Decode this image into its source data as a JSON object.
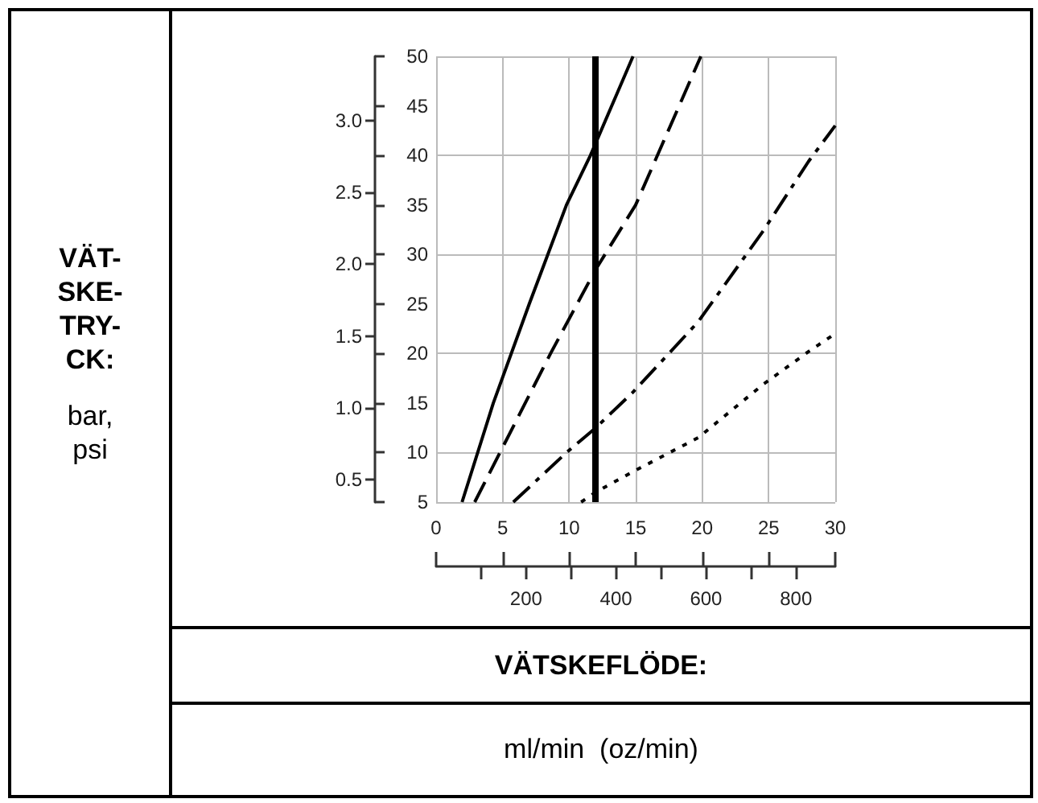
{
  "chart_data": {
    "type": "line",
    "xlabel": "VÄTSKEFLÖDE:",
    "x2label": "ml/min (oz/min)",
    "annotations": [
      "VÄT-SKE-TRY-CK:",
      "bar, psi"
    ],
    "xlim": [
      0,
      30
    ],
    "xticks": [
      0,
      5,
      10,
      15,
      20,
      25,
      30
    ],
    "x2lim": [
      0,
      887.2
    ],
    "x2ticks": [
      {
        "value": 100,
        "label": null
      },
      {
        "value": 200,
        "label": "200"
      },
      {
        "value": 300,
        "label": null
      },
      {
        "value": 400,
        "label": "400"
      },
      {
        "value": 500,
        "label": null
      },
      {
        "value": 600,
        "label": "600"
      },
      {
        "value": 700,
        "label": null
      },
      {
        "value": 800,
        "label": "800"
      }
    ],
    "ylim": [
      0.345,
      3.447
    ],
    "yticks": [
      {
        "value": 0.5,
        "label": "0.5"
      },
      {
        "value": 1,
        "label": "1.0"
      },
      {
        "value": 1.5,
        "label": "1.5"
      },
      {
        "value": 2,
        "label": "2.0"
      },
      {
        "value": 2.5,
        "label": "2.5"
      },
      {
        "value": 3,
        "label": "3.0"
      }
    ],
    "y2lim": [
      5,
      50
    ],
    "y2ticks": [
      5,
      10,
      15,
      20,
      25,
      30,
      35,
      40,
      45,
      50
    ],
    "grid": true,
    "marker": "none",
    "ref_lines": [
      {
        "axis": "x",
        "value": 12,
        "color": "#000000"
      }
    ],
    "series": [
      {
        "color": "#000000",
        "line_style": "solid",
        "axis": "y2",
        "x": [
          1.95,
          4.3,
          7,
          9.8,
          11.6,
          14.8
        ],
        "values": [
          5,
          15,
          25,
          35,
          40,
          50
        ]
      },
      {
        "color": "#000000",
        "line_style": "dashed",
        "axis": "y2",
        "x": [
          2.9,
          4.8,
          8.6,
          12,
          15,
          19.9
        ],
        "values": [
          5,
          10,
          20,
          28.5,
          35,
          50
        ]
      },
      {
        "color": "#000000",
        "line_style": "dashdot",
        "axis": "y2",
        "x": [
          5.8,
          9.8,
          12,
          14.8,
          19.7,
          24.6,
          28,
          30
        ],
        "values": [
          5,
          10,
          12.5,
          16.1,
          23.2,
          32.4,
          39.4,
          43
        ]
      },
      {
        "color": "#000000",
        "line_style": "dotted",
        "axis": "y2",
        "x": [
          10.9,
          12,
          14.7,
          19.7,
          24.6,
          28,
          30
        ],
        "values": [
          5,
          6,
          8,
          11.5,
          16.9,
          20.2,
          22
        ]
      }
    ]
  }
}
